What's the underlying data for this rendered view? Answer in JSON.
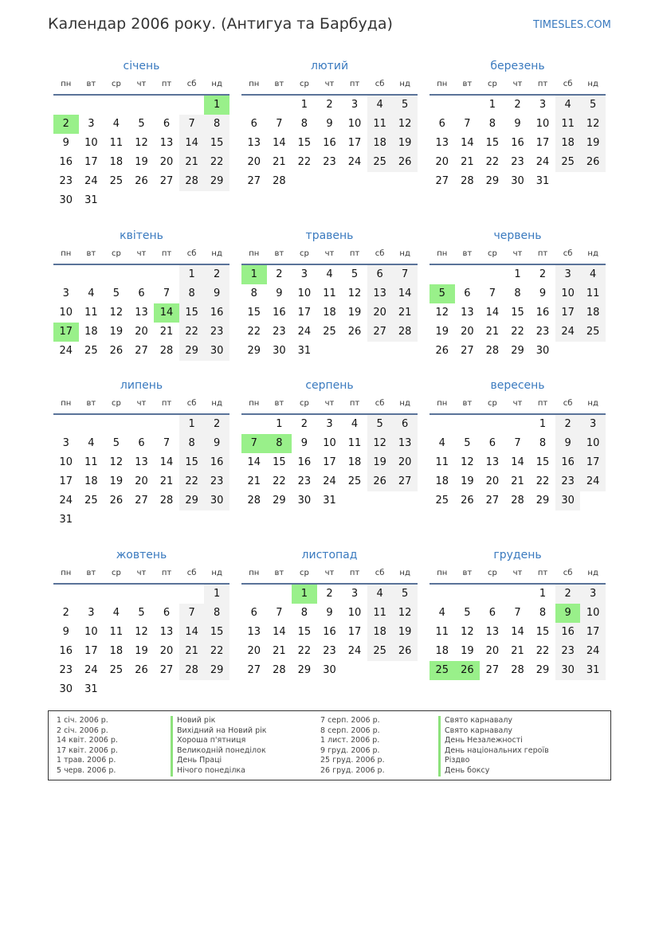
{
  "title": "Календар 2006 року. (Антигуа та Барбуда)",
  "brand": "TIMESLES.COM",
  "weekdays": [
    "пн",
    "вт",
    "ср",
    "чт",
    "пт",
    "сб",
    "нд"
  ],
  "colors": {
    "accent": "#3a7abf",
    "holiday": "#99f08a",
    "weekend": "#f2f2f2"
  },
  "months": [
    {
      "name": "січень",
      "offset": 6,
      "days": 31,
      "holidays": [
        1,
        2
      ]
    },
    {
      "name": "лютий",
      "offset": 2,
      "days": 28,
      "holidays": []
    },
    {
      "name": "березень",
      "offset": 2,
      "days": 31,
      "holidays": []
    },
    {
      "name": "квітень",
      "offset": 5,
      "days": 30,
      "holidays": [
        14,
        17
      ]
    },
    {
      "name": "травень",
      "offset": 0,
      "days": 31,
      "holidays": [
        1
      ]
    },
    {
      "name": "червень",
      "offset": 3,
      "days": 30,
      "holidays": [
        5
      ]
    },
    {
      "name": "липень",
      "offset": 5,
      "days": 31,
      "holidays": []
    },
    {
      "name": "серпень",
      "offset": 1,
      "days": 31,
      "holidays": [
        7,
        8
      ]
    },
    {
      "name": "вересень",
      "offset": 4,
      "days": 30,
      "holidays": []
    },
    {
      "name": "жовтень",
      "offset": 6,
      "days": 31,
      "holidays": []
    },
    {
      "name": "листопад",
      "offset": 2,
      "days": 30,
      "holidays": [
        1
      ]
    },
    {
      "name": "грудень",
      "offset": 4,
      "days": 31,
      "holidays": [
        9,
        25,
        26
      ]
    }
  ],
  "legend": [
    {
      "date": "1 січ. 2006 р.",
      "name": "Новий рік"
    },
    {
      "date": "2 січ. 2006 р.",
      "name": "Вихідний на Новий рік"
    },
    {
      "date": "14 квіт. 2006 р.",
      "name": "Хороша п'ятниця"
    },
    {
      "date": "17 квіт. 2006 р.",
      "name": "Великодній понеділок"
    },
    {
      "date": "1 трав. 2006 р.",
      "name": "День Праці"
    },
    {
      "date": "5 черв. 2006 р.",
      "name": "Нічого понеділка"
    },
    {
      "date": "7 серп. 2006 р.",
      "name": "Свято карнавалу"
    },
    {
      "date": "8 серп. 2006 р.",
      "name": "Свято карнавалу"
    },
    {
      "date": "1 лист. 2006 р.",
      "name": "День Незалежності"
    },
    {
      "date": "9 груд. 2006 р.",
      "name": "День національних героїв"
    },
    {
      "date": "25 груд. 2006 р.",
      "name": "Різдво"
    },
    {
      "date": "26 груд. 2006 р.",
      "name": "День боксу"
    }
  ]
}
